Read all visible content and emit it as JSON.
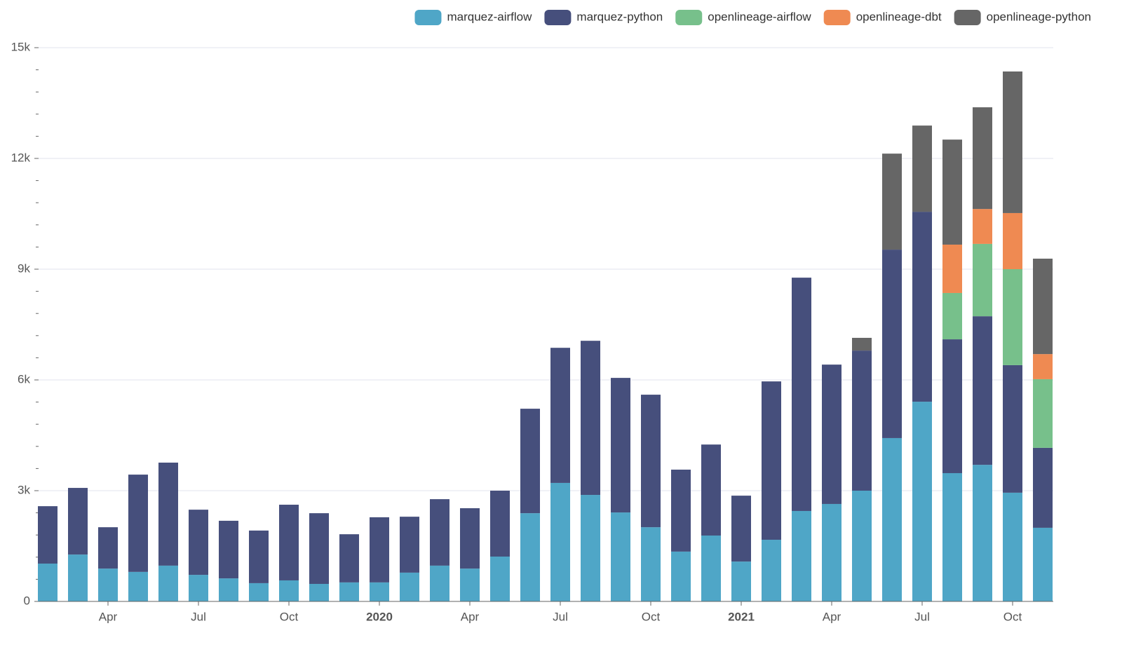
{
  "chart_data": {
    "type": "stacked_bar",
    "categories": [
      null,
      null,
      "Apr",
      null,
      null,
      "Jul",
      null,
      null,
      "Oct",
      null,
      null,
      "2020",
      null,
      null,
      "Apr",
      null,
      null,
      "Jul",
      null,
      null,
      "Oct",
      null,
      null,
      "2021",
      null,
      null,
      "Apr",
      null,
      null,
      "Jul",
      null,
      null,
      "Oct",
      null
    ],
    "series": [
      {
        "name": "marquez-airflow",
        "color": "#4fa6c7",
        "values": [
          1025,
          1270,
          890,
          800,
          970,
          720,
          625,
          495,
          570,
          475,
          515,
          515,
          780,
          970,
          890,
          1215,
          2390,
          3210,
          2885,
          2410,
          2010,
          1350,
          1785,
          1080,
          1670,
          2450,
          2640,
          3000,
          4425,
          5410,
          3475,
          3700,
          2945,
          1995
        ]
      },
      {
        "name": "marquez-python",
        "color": "#464f7c",
        "values": [
          1555,
          1805,
          1120,
          2635,
          2790,
          1765,
          1560,
          1425,
          2050,
          1915,
          1305,
          1765,
          1515,
          1800,
          1635,
          1785,
          2830,
          3660,
          4175,
          3645,
          3590,
          2220,
          2465,
          1785,
          4290,
          6320,
          3775,
          3795,
          5105,
          5145,
          3625,
          4025,
          3455,
          2165
        ]
      },
      {
        "name": "openlineage-airflow",
        "color": "#77c08b",
        "values": [
          null,
          null,
          null,
          null,
          null,
          null,
          null,
          null,
          null,
          null,
          null,
          null,
          null,
          null,
          null,
          null,
          null,
          null,
          null,
          null,
          null,
          null,
          null,
          null,
          null,
          null,
          null,
          null,
          null,
          null,
          1255,
          1960,
          2600,
          1860
        ]
      },
      {
        "name": "openlineage-dbt",
        "color": "#ef8a52",
        "values": [
          null,
          null,
          null,
          null,
          null,
          null,
          null,
          null,
          null,
          null,
          null,
          null,
          null,
          null,
          null,
          null,
          null,
          null,
          null,
          null,
          null,
          null,
          null,
          null,
          null,
          null,
          null,
          null,
          null,
          null,
          1310,
          945,
          1520,
          680
        ]
      },
      {
        "name": "openlineage-python",
        "color": "#666666",
        "values": [
          null,
          null,
          null,
          null,
          null,
          null,
          null,
          null,
          null,
          null,
          null,
          null,
          null,
          null,
          null,
          null,
          null,
          null,
          null,
          null,
          null,
          null,
          null,
          null,
          null,
          null,
          null,
          345,
          2600,
          2335,
          2845,
          2755,
          3835,
          2585
        ]
      }
    ],
    "ylim": [
      0,
      15000
    ],
    "yticks": [
      0,
      {
        "value": 3000,
        "label": "3k"
      },
      {
        "value": 6000,
        "label": "6k"
      },
      {
        "value": 9000,
        "label": "9k"
      },
      {
        "value": 12000,
        "label": "12k"
      },
      {
        "value": 15000,
        "label": "15k"
      }
    ],
    "yminorticks": [
      600,
      1200,
      1800,
      2400,
      3600,
      4200,
      4800,
      5400,
      6600,
      7200,
      7800,
      8400,
      9600,
      10200,
      10800,
      11400,
      12600,
      13200,
      13800,
      14400
    ],
    "grid": true,
    "legend": "top-right"
  }
}
